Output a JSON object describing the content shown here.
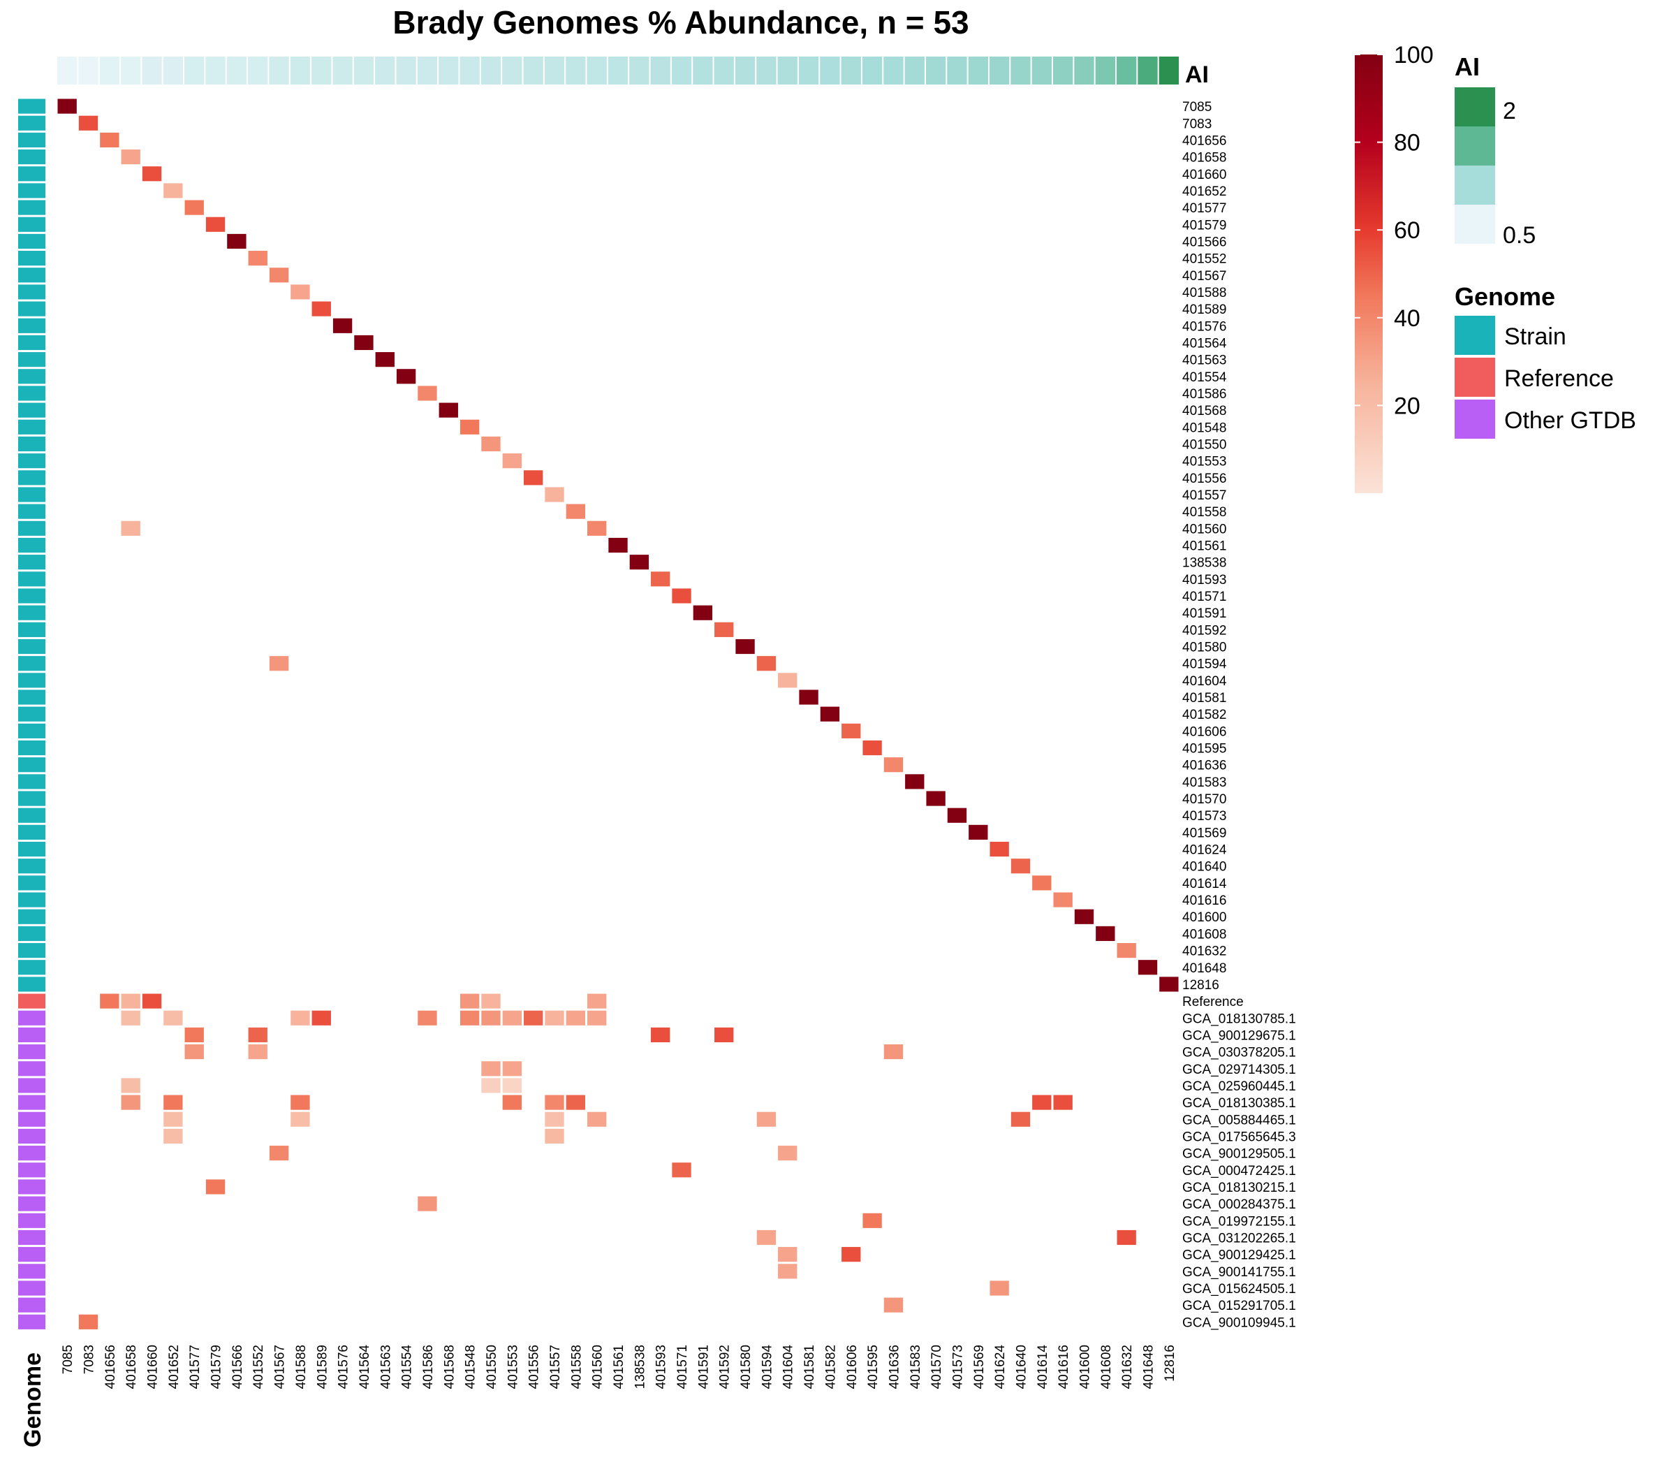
{
  "chart_data": {
    "type": "heatmap",
    "title": "Brady Genomes % Abundance, n = 53",
    "columns": [
      "7085",
      "7083",
      "401656",
      "401658",
      "401660",
      "401652",
      "401577",
      "401579",
      "401566",
      "401552",
      "401567",
      "401588",
      "401589",
      "401576",
      "401564",
      "401563",
      "401554",
      "401586",
      "401568",
      "401548",
      "401550",
      "401553",
      "401556",
      "401557",
      "401558",
      "401560",
      "401561",
      "138538",
      "401593",
      "401571",
      "401591",
      "401592",
      "401580",
      "401594",
      "401604",
      "401581",
      "401582",
      "401606",
      "401595",
      "401636",
      "401583",
      "401570",
      "401573",
      "401569",
      "401624",
      "401640",
      "401614",
      "401616",
      "401600",
      "401608",
      "401632",
      "401648",
      "12816"
    ],
    "rows": [
      "7085",
      "7083",
      "401656",
      "401658",
      "401660",
      "401652",
      "401577",
      "401579",
      "401566",
      "401552",
      "401567",
      "401588",
      "401589",
      "401576",
      "401564",
      "401563",
      "401554",
      "401586",
      "401568",
      "401548",
      "401550",
      "401553",
      "401556",
      "401557",
      "401558",
      "401560",
      "401561",
      "138538",
      "401593",
      "401571",
      "401591",
      "401592",
      "401580",
      "401594",
      "401604",
      "401581",
      "401582",
      "401606",
      "401595",
      "401636",
      "401583",
      "401570",
      "401573",
      "401569",
      "401624",
      "401640",
      "401614",
      "401616",
      "401600",
      "401608",
      "401632",
      "401648",
      "12816",
      "Reference",
      "GCA_018130785.1",
      "GCA_900129675.1",
      "GCA_030378205.1",
      "GCA_029714305.1",
      "GCA_025960445.1",
      "GCA_018130385.1",
      "GCA_005884465.1",
      "GCA_017565645.3",
      "GCA_900129505.1",
      "GCA_000472425.1",
      "GCA_018130215.1",
      "GCA_000284375.1",
      "GCA_019972155.1",
      "GCA_031202265.1",
      "GCA_900129425.1",
      "GCA_900141755.1",
      "GCA_015624505.1",
      "GCA_015291705.1",
      "GCA_900109945.1"
    ],
    "row_groups": [
      "Strain",
      "Strain",
      "Strain",
      "Strain",
      "Strain",
      "Strain",
      "Strain",
      "Strain",
      "Strain",
      "Strain",
      "Strain",
      "Strain",
      "Strain",
      "Strain",
      "Strain",
      "Strain",
      "Strain",
      "Strain",
      "Strain",
      "Strain",
      "Strain",
      "Strain",
      "Strain",
      "Strain",
      "Strain",
      "Strain",
      "Strain",
      "Strain",
      "Strain",
      "Strain",
      "Strain",
      "Strain",
      "Strain",
      "Strain",
      "Strain",
      "Strain",
      "Strain",
      "Strain",
      "Strain",
      "Strain",
      "Strain",
      "Strain",
      "Strain",
      "Strain",
      "Strain",
      "Strain",
      "Strain",
      "Strain",
      "Strain",
      "Strain",
      "Strain",
      "Strain",
      "Strain",
      "Reference",
      "Other GTDB",
      "Other GTDB",
      "Other GTDB",
      "Other GTDB",
      "Other GTDB",
      "Other GTDB",
      "Other GTDB",
      "Other GTDB",
      "Other GTDB",
      "Other GTDB",
      "Other GTDB",
      "Other GTDB",
      "Other GTDB",
      "Other GTDB",
      "Other GTDB",
      "Other GTDB",
      "Other GTDB",
      "Other GTDB",
      "Other GTDB"
    ],
    "diagonal": [
      100,
      55,
      45,
      30,
      55,
      25,
      45,
      55,
      100,
      40,
      40,
      30,
      55,
      100,
      100,
      100,
      100,
      40,
      100,
      45,
      35,
      30,
      55,
      25,
      40,
      40,
      100,
      100,
      50,
      55,
      100,
      50,
      100,
      50,
      25,
      100,
      100,
      50,
      55,
      40,
      100,
      100,
      100,
      100,
      55,
      50,
      45,
      40,
      100,
      100,
      40,
      100,
      100
    ],
    "extra_cells": [
      [
        25,
        3,
        25
      ],
      [
        33,
        10,
        35
      ],
      [
        53,
        2,
        45
      ],
      [
        53,
        3,
        25
      ],
      [
        53,
        4,
        55
      ],
      [
        53,
        19,
        35
      ],
      [
        53,
        20,
        25
      ],
      [
        53,
        25,
        30
      ],
      [
        54,
        3,
        20
      ],
      [
        54,
        5,
        20
      ],
      [
        54,
        11,
        25
      ],
      [
        54,
        12,
        55
      ],
      [
        54,
        17,
        40
      ],
      [
        54,
        19,
        40
      ],
      [
        54,
        20,
        35
      ],
      [
        54,
        21,
        30
      ],
      [
        54,
        22,
        50
      ],
      [
        54,
        23,
        25
      ],
      [
        54,
        24,
        30
      ],
      [
        54,
        25,
        30
      ],
      [
        55,
        6,
        45
      ],
      [
        55,
        9,
        50
      ],
      [
        55,
        28,
        55
      ],
      [
        55,
        31,
        55
      ],
      [
        56,
        6,
        35
      ],
      [
        56,
        9,
        30
      ],
      [
        56,
        39,
        35
      ],
      [
        57,
        20,
        30
      ],
      [
        57,
        21,
        30
      ],
      [
        58,
        3,
        20
      ],
      [
        58,
        20,
        10
      ],
      [
        58,
        21,
        8
      ],
      [
        59,
        3,
        35
      ],
      [
        59,
        5,
        45
      ],
      [
        59,
        11,
        45
      ],
      [
        59,
        21,
        45
      ],
      [
        59,
        23,
        40
      ],
      [
        59,
        24,
        50
      ],
      [
        59,
        46,
        55
      ],
      [
        59,
        47,
        55
      ],
      [
        60,
        5,
        20
      ],
      [
        60,
        11,
        20
      ],
      [
        60,
        23,
        18
      ],
      [
        60,
        25,
        30
      ],
      [
        60,
        33,
        30
      ],
      [
        60,
        45,
        50
      ],
      [
        61,
        5,
        20
      ],
      [
        61,
        23,
        22
      ],
      [
        62,
        10,
        40
      ],
      [
        62,
        34,
        30
      ],
      [
        63,
        29,
        50
      ],
      [
        64,
        7,
        45
      ],
      [
        65,
        17,
        35
      ],
      [
        66,
        38,
        45
      ],
      [
        67,
        33,
        30
      ],
      [
        67,
        50,
        55
      ],
      [
        68,
        34,
        30
      ],
      [
        68,
        37,
        55
      ],
      [
        69,
        34,
        30
      ],
      [
        70,
        44,
        35
      ],
      [
        71,
        39,
        35
      ],
      [
        72,
        1,
        45
      ]
    ],
    "ai_values": [
      0.5,
      0.5,
      0.55,
      0.55,
      0.6,
      0.6,
      0.65,
      0.65,
      0.65,
      0.65,
      0.68,
      0.7,
      0.7,
      0.7,
      0.7,
      0.72,
      0.72,
      0.72,
      0.74,
      0.74,
      0.76,
      0.76,
      0.78,
      0.78,
      0.8,
      0.8,
      0.82,
      0.84,
      0.86,
      0.88,
      0.9,
      0.9,
      0.92,
      0.92,
      0.94,
      0.95,
      0.96,
      0.98,
      1.0,
      1.0,
      1.02,
      1.04,
      1.05,
      1.08,
      1.1,
      1.12,
      1.15,
      1.2,
      1.25,
      1.35,
      1.5,
      1.8,
      2.2
    ],
    "color_scale": {
      "min": 0,
      "max": 100,
      "ticks": [
        "20",
        "40",
        "60",
        "80",
        "100"
      ]
    },
    "legend_ai": {
      "title": "AI",
      "labels": [
        "2",
        "0.5"
      ],
      "colors": [
        "#2a9150",
        "#5db893",
        "#a6dcd9",
        "#e9f5f9"
      ]
    },
    "legend_genome": {
      "title": "Genome",
      "items": [
        {
          "label": "Strain",
          "color": "#19b3b9"
        },
        {
          "label": "Reference",
          "color": "#f15d5c"
        },
        {
          "label": "Other GTDB",
          "color": "#b95ff5"
        }
      ]
    },
    "annotation_labels": {
      "ai": "AI",
      "genome": "Genome"
    }
  }
}
